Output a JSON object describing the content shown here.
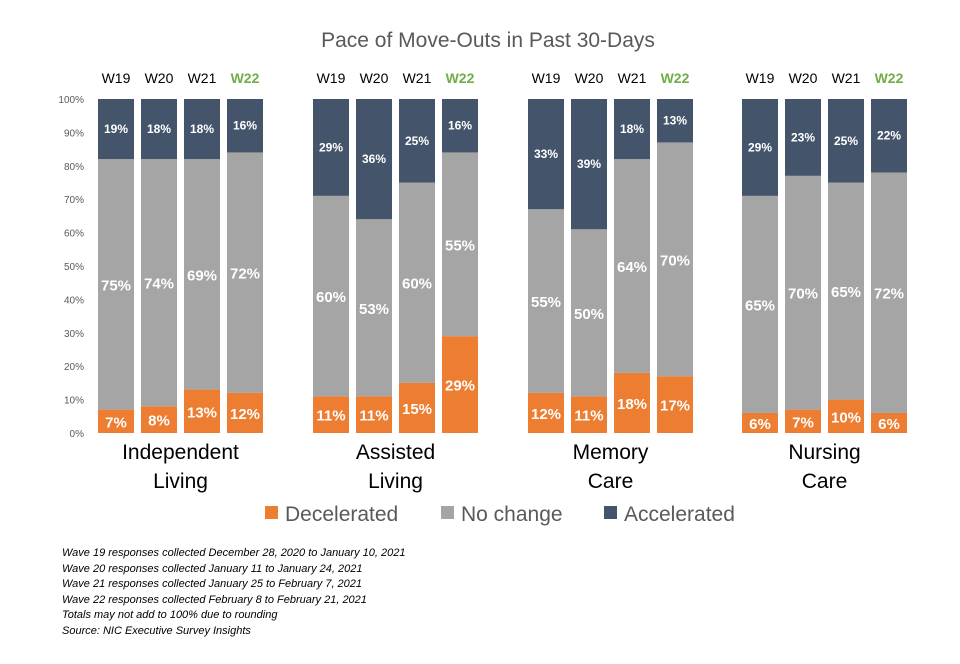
{
  "chart_data": {
    "type": "bar",
    "stacked": true,
    "title": "Pace of Move-Outs in Past 30-Days",
    "ylim": [
      0,
      100
    ],
    "yticks": [
      "0%",
      "10%",
      "20%",
      "30%",
      "40%",
      "50%",
      "60%",
      "70%",
      "80%",
      "90%",
      "100%"
    ],
    "highlight_wave": "W22",
    "legend_position": "bottom",
    "colors": {
      "Decelerated": "#ed7d31",
      "No change": "#a5a5a5",
      "Accelerated": "#44546a",
      "highlight_wave": "#70ad47"
    },
    "series_names": [
      "Decelerated",
      "No change",
      "Accelerated"
    ],
    "groups": [
      {
        "name_lines": [
          "Independent",
          "Living"
        ],
        "bars": [
          {
            "wave": "W19",
            "decelerated": 7,
            "no_change": 75,
            "accelerated": 19
          },
          {
            "wave": "W20",
            "decelerated": 8,
            "no_change": 74,
            "accelerated": 18
          },
          {
            "wave": "W21",
            "decelerated": 13,
            "no_change": 69,
            "accelerated": 18
          },
          {
            "wave": "W22",
            "decelerated": 12,
            "no_change": 72,
            "accelerated": 16
          }
        ]
      },
      {
        "name_lines": [
          "Assisted",
          "Living"
        ],
        "bars": [
          {
            "wave": "W19",
            "decelerated": 11,
            "no_change": 60,
            "accelerated": 29
          },
          {
            "wave": "W20",
            "decelerated": 11,
            "no_change": 53,
            "accelerated": 36
          },
          {
            "wave": "W21",
            "decelerated": 15,
            "no_change": 60,
            "accelerated": 25
          },
          {
            "wave": "W22",
            "decelerated": 29,
            "no_change": 55,
            "accelerated": 16
          }
        ]
      },
      {
        "name_lines": [
          "Memory",
          "Care"
        ],
        "bars": [
          {
            "wave": "W19",
            "decelerated": 12,
            "no_change": 55,
            "accelerated": 33
          },
          {
            "wave": "W20",
            "decelerated": 11,
            "no_change": 50,
            "accelerated": 39
          },
          {
            "wave": "W21",
            "decelerated": 18,
            "no_change": 64,
            "accelerated": 18
          },
          {
            "wave": "W22",
            "decelerated": 17,
            "no_change": 70,
            "accelerated": 13
          }
        ]
      },
      {
        "name_lines": [
          "Nursing",
          "Care"
        ],
        "bars": [
          {
            "wave": "W19",
            "decelerated": 6,
            "no_change": 65,
            "accelerated": 29
          },
          {
            "wave": "W20",
            "decelerated": 7,
            "no_change": 70,
            "accelerated": 23
          },
          {
            "wave": "W21",
            "decelerated": 10,
            "no_change": 65,
            "accelerated": 25
          },
          {
            "wave": "W22",
            "decelerated": 6,
            "no_change": 72,
            "accelerated": 22
          }
        ]
      }
    ]
  },
  "footnotes": [
    "Wave 19 responses collected  December 28, 2020 to January 10, 2021",
    "Wave 20 responses collected January 11 to January 24, 2021",
    "Wave 21 responses collected January 25 to February 7, 2021",
    "Wave 22 responses collected February 8 to February 21, 2021",
    "Totals may not add to 100% due to rounding",
    "Source: NIC Executive Survey Insights"
  ]
}
